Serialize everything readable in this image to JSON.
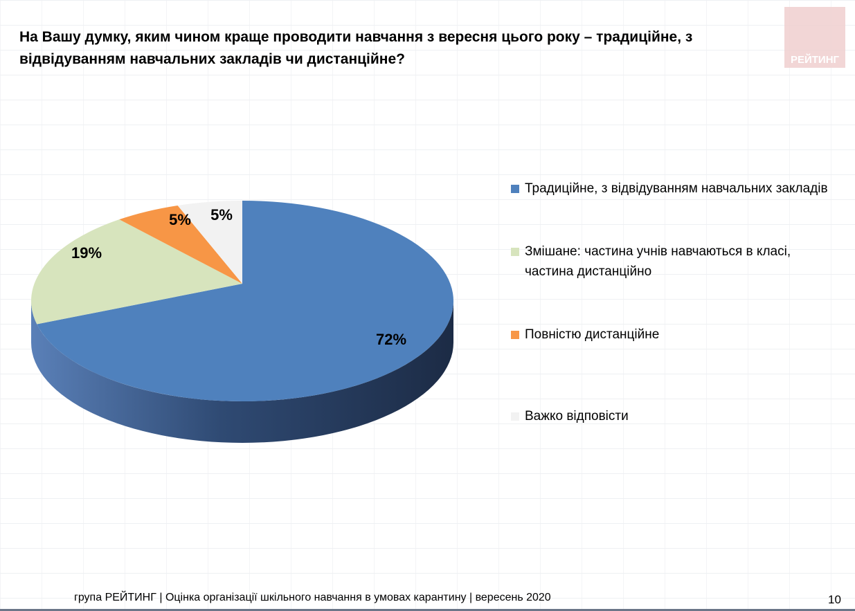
{
  "title": "На Вашу думку, яким чином краще проводити навчання з вересня цього року – традиційне, з відвідуванням навчальних закладів чи дистанційне?",
  "logo_text": "РЕЙТИНГ",
  "chart_data": {
    "type": "pie",
    "style": "3d",
    "title": "На Вашу думку, яким чином краще проводити навчання з вересня цього року – традиційне, з відвідуванням навчальних закладів чи дистанційне?",
    "categories": [
      "Традиційне, з відвідуванням навчальних закладів",
      "Змішане: частина учнів навчаються в класі, частина дистанційно",
      "Повністю дистанційне",
      "Важко відповісти"
    ],
    "values": [
      72,
      19,
      5,
      5
    ],
    "labels": [
      "72%",
      "19%",
      "5%",
      "5%"
    ],
    "colors": [
      "#4f81bd",
      "#d7e4bd",
      "#f79646",
      "#f2f2f2"
    ],
    "legend_position": "right"
  },
  "footer": "група РЕЙТИНГ |  Оцінка організації шкільного навчання в умовах карантину | вересень  2020",
  "page_number": "10"
}
